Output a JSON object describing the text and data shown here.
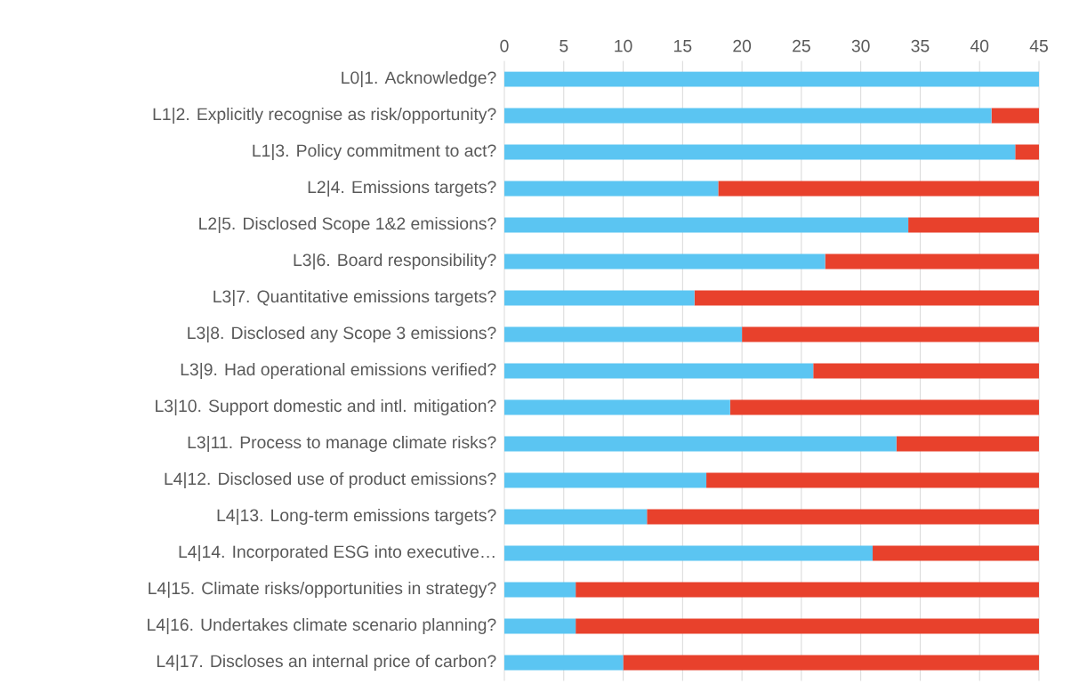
{
  "chart_data": {
    "type": "bar",
    "orientation": "horizontal",
    "stacked": true,
    "grid": "x",
    "categories": [
      "L0|1. Acknowledge?",
      "L1|2. Explicitly recognise as risk/opportunity?",
      "L1|3. Policy commitment to act?",
      "L2|4. Emissions targets?",
      "L2|5. Disclosed Scope 1&2 emissions?",
      "L3|6. Board responsibility?",
      "L3|7. Quantitative emissions targets?",
      "L3|8. Disclosed any Scope 3 emissions?",
      "L3|9. Had operational emissions verified?",
      "L3|10. Support domestic and intl. mitigation?",
      "L3|11. Process to manage climate risks?",
      "L4|12. Disclosed use of product emissions?",
      "L4|13. Long-term emissions targets?",
      "L4|14. Incorporated ESG into executive…",
      "L4|15. Climate risks/opportunities in strategy?",
      "L4|16. Undertakes climate scenario planning?",
      "L4|17. Discloses an internal price of carbon?"
    ],
    "series": [
      {
        "color": "#5bc5f2",
        "values": [
          45,
          41,
          43,
          18,
          34,
          27,
          16,
          20,
          26,
          19,
          33,
          17,
          12,
          31,
          6,
          6,
          10
        ]
      },
      {
        "color": "#e8412c",
        "values": [
          0,
          4,
          2,
          27,
          11,
          18,
          29,
          25,
          19,
          26,
          12,
          28,
          33,
          14,
          39,
          39,
          35
        ]
      }
    ],
    "xlim": [
      0,
      45
    ],
    "xticks": [
      0,
      5,
      10,
      15,
      20,
      25,
      30,
      35,
      40,
      45
    ]
  }
}
